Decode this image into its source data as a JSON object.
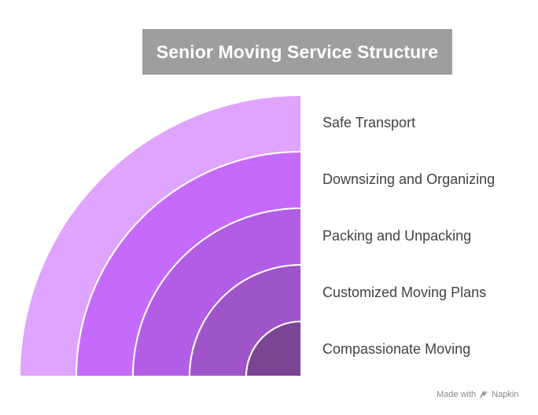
{
  "title": "Senior Moving Service Structure",
  "layers": [
    {
      "label": "Safe Transport",
      "color": "#dfa4fd"
    },
    {
      "label": "Downsizing and Organizing",
      "color": "#c66afc"
    },
    {
      "label": "Packing and Unpacking",
      "color": "#b15de6"
    },
    {
      "label": "Customized Moving Plans",
      "color": "#9f54c9"
    },
    {
      "label": "Compassionate Moving",
      "color": "#7a4593"
    }
  ],
  "footer": {
    "made_with": "Made with",
    "brand": "Napkin",
    "icon": "napkin-logo-icon"
  }
}
